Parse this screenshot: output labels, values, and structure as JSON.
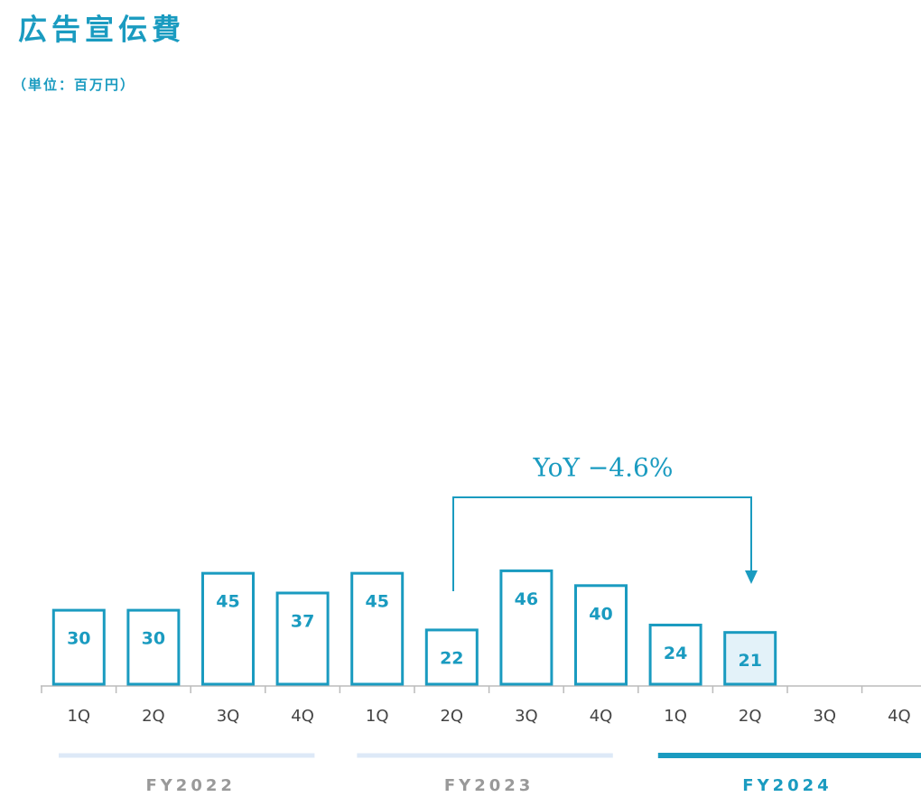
{
  "chart_data": {
    "type": "bar",
    "title": "広告宣伝費",
    "subtitle": "（単位：百万円）",
    "categories": [
      "1Q",
      "2Q",
      "3Q",
      "4Q",
      "1Q",
      "2Q",
      "3Q",
      "4Q",
      "1Q",
      "2Q",
      "3Q",
      "4Q"
    ],
    "values": [
      30,
      30,
      45,
      37,
      45,
      22,
      46,
      40,
      24,
      21,
      null,
      null
    ],
    "color": "#1a9bc0",
    "fills": [
      "#ffffff",
      "#ffffff",
      "#ffffff",
      "#ffffff",
      "#ffffff",
      "#ffffff",
      "#ffffff",
      "#ffffff",
      "#ffffff",
      "#e3f2f9",
      "#ffffff",
      "#ffffff"
    ],
    "groups": [
      "FY2022",
      "FY2023",
      "FY2024"
    ],
    "group_colors": [
      "#dde9f7",
      "#dde9f7",
      "#1a9bc0"
    ],
    "annotation": "YoY −4.6%"
  }
}
